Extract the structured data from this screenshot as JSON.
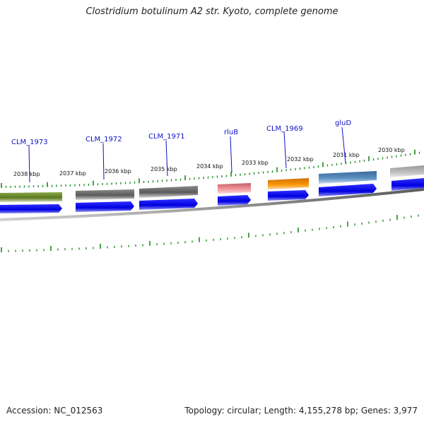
{
  "header": {
    "title": "Clostridium botulinum A2 str. Kyoto, complete genome"
  },
  "footer": {
    "accession": "Accession: NC_012563",
    "summary": "Topology: circular; Length: 4,155,278 bp; Genes: 3,977"
  },
  "map": {
    "kbp_labels": [
      "2038 kbp",
      "2037 kbp",
      "2036 kbp",
      "2035 kbp",
      "2034 kbp",
      "2033 kbp",
      "2032 kbp",
      "2031 kbp",
      "2030 kbp"
    ],
    "gene_labels": [
      "CLM_1973",
      "CLM_1972",
      "CLM_1971",
      "rluB",
      "CLM_1969",
      "gluD"
    ],
    "feature_colors": {
      "green": "#5a7a1e",
      "gray": "#707070",
      "pink": "#e57f86",
      "orange": "#f08c00",
      "steel_blue": "#4a7fb0",
      "light_gray": "#b4b4b4",
      "cds_blue": "#0a0af0",
      "ticks": "#1a8a1a"
    }
  }
}
